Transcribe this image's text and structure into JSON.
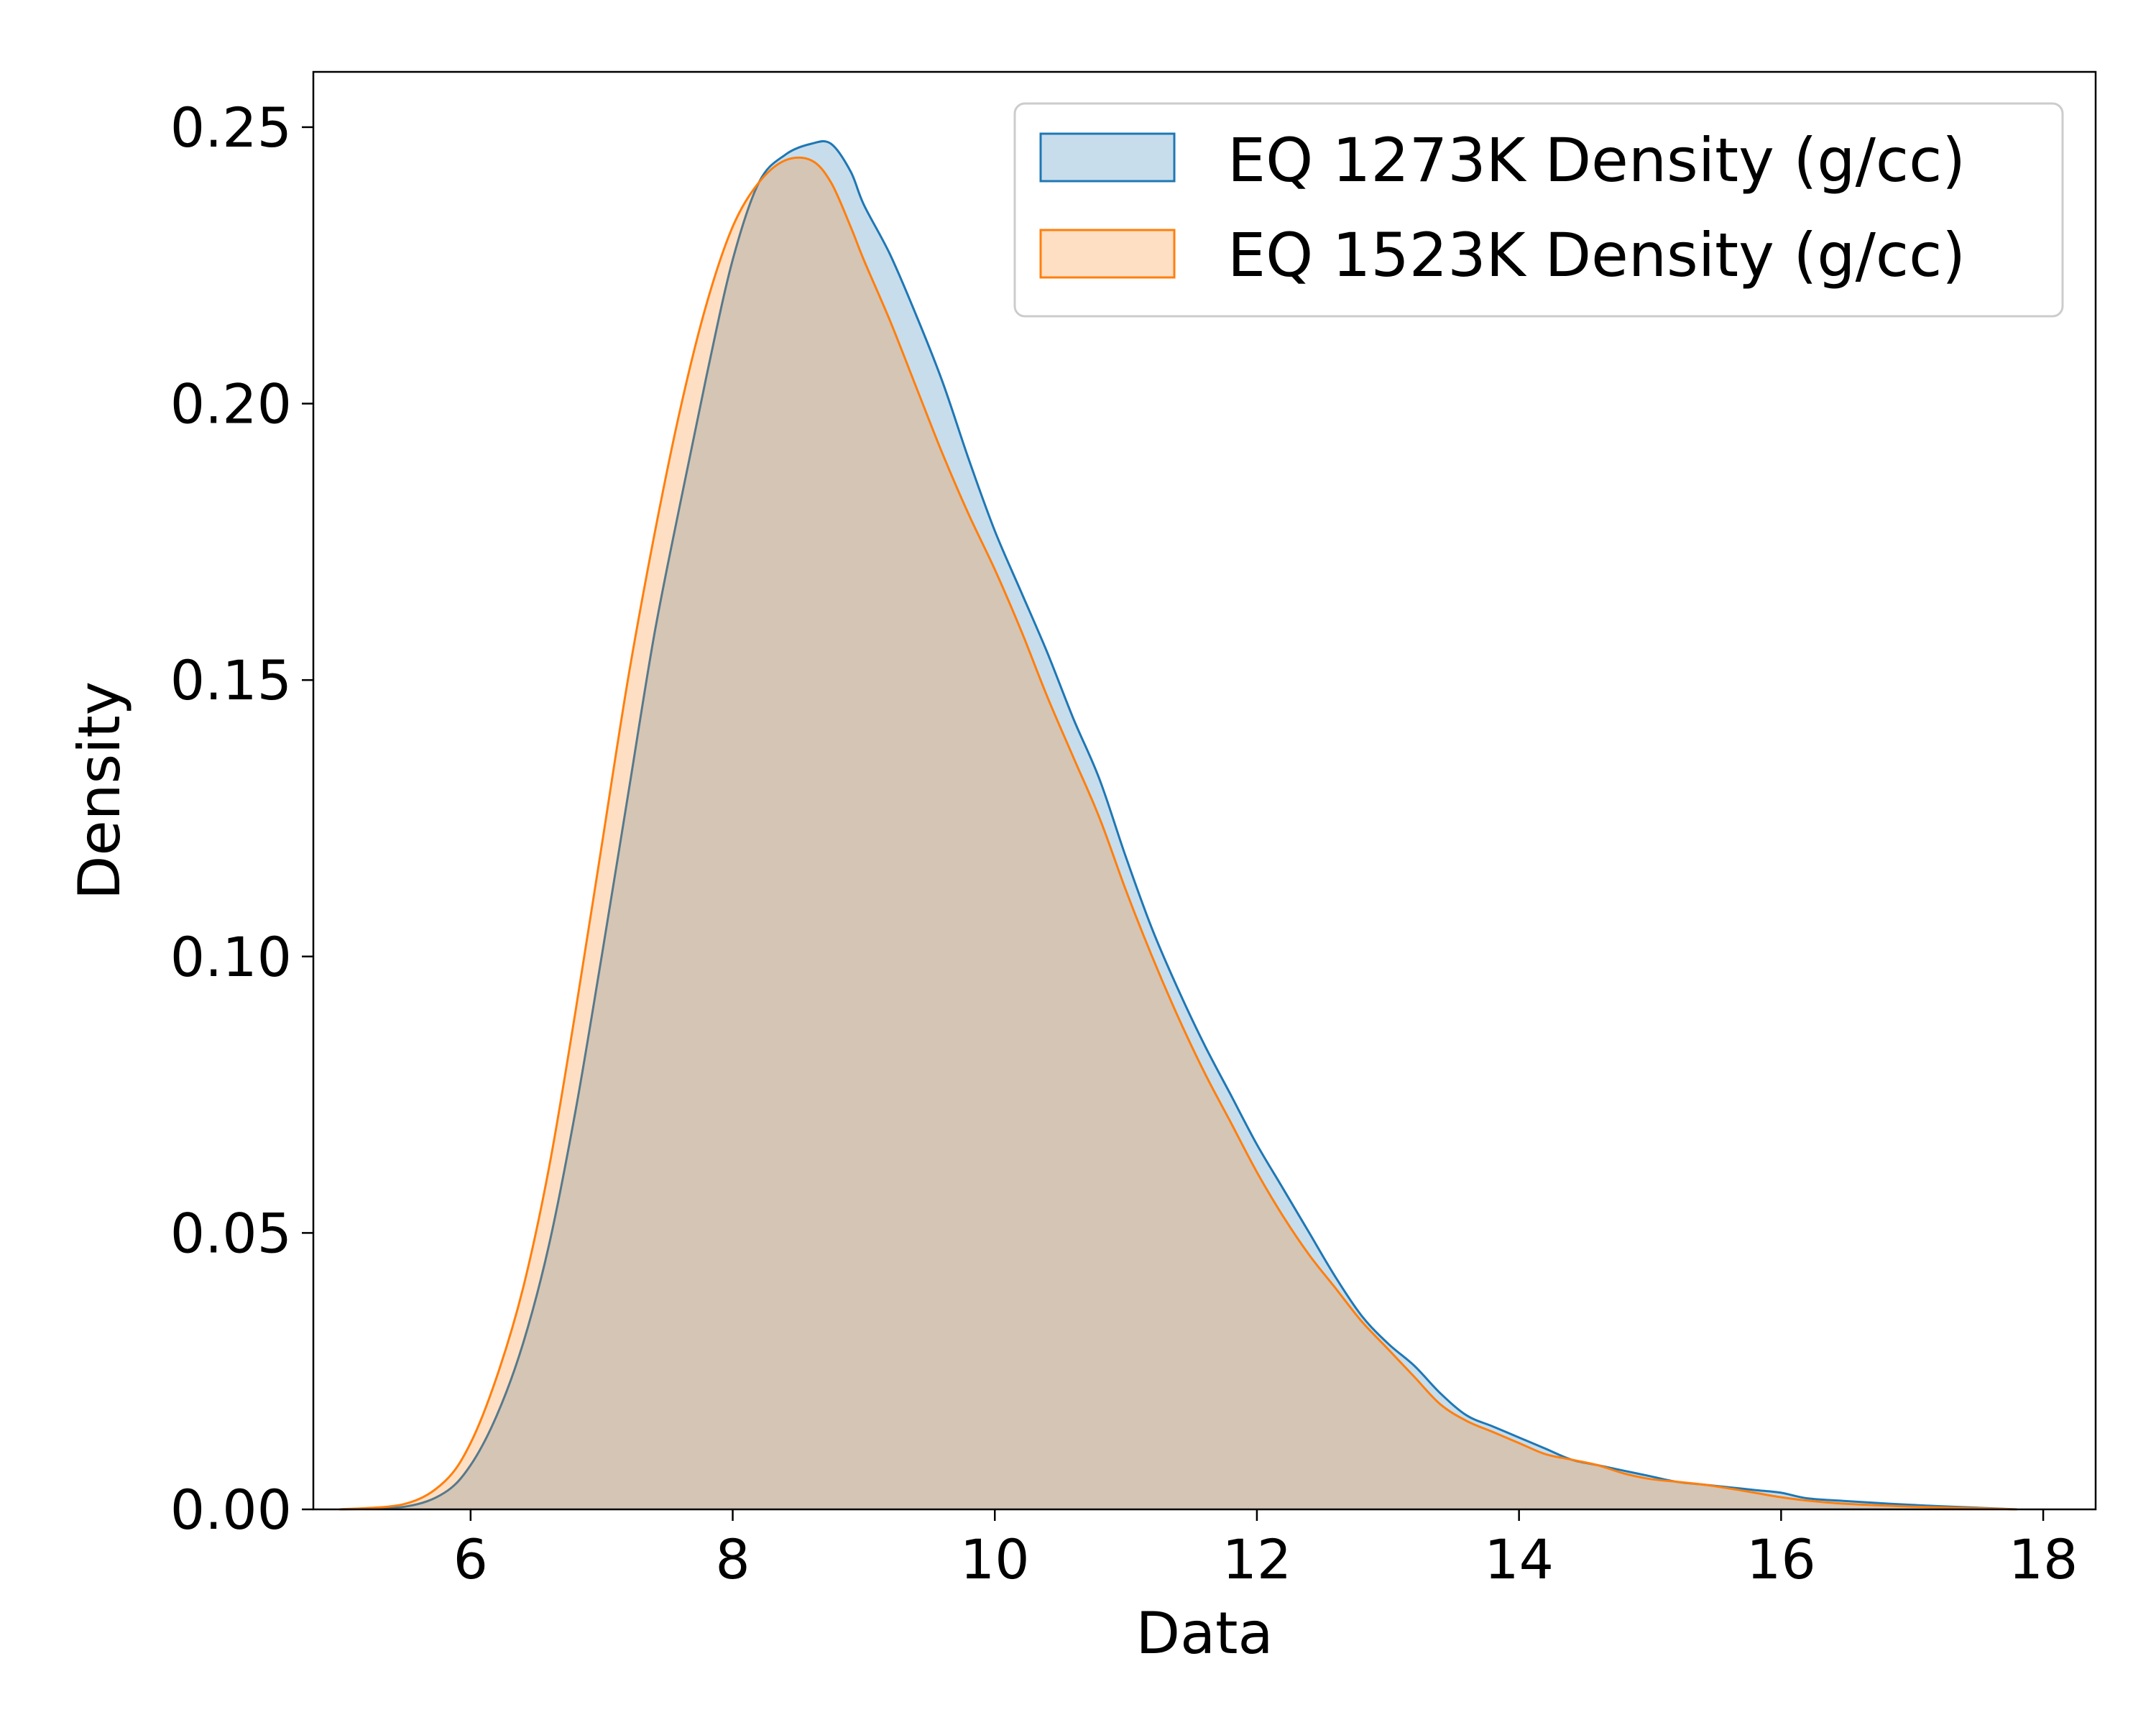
{
  "chart_data": {
    "type": "area",
    "title": "",
    "xlabel": "Data",
    "ylabel": "Density",
    "xlim": [
      4.8,
      18.4
    ],
    "ylim": [
      0,
      0.26
    ],
    "xticks": [
      6,
      8,
      10,
      12,
      14,
      16,
      18
    ],
    "xtick_labels": [
      "6",
      "8",
      "10",
      "12",
      "14",
      "16",
      "18"
    ],
    "yticks": [
      0,
      0.05,
      0.1,
      0.15,
      0.2,
      0.25
    ],
    "ytick_labels": [
      "0.00",
      "0.05",
      "0.10",
      "0.15",
      "0.20",
      "0.25"
    ],
    "grid": false,
    "legend_position": "top-right",
    "series": [
      {
        "name": "EQ 1273K Density (g/cc)",
        "color": "#1f77b4",
        "fill": "#c5d9eb",
        "x": [
          5.0,
          5.5,
          5.8,
          6.0,
          6.2,
          6.4,
          6.6,
          6.8,
          7.0,
          7.2,
          7.4,
          7.6,
          7.8,
          8.0,
          8.2,
          8.4,
          8.6,
          8.75,
          8.9,
          9.0,
          9.2,
          9.4,
          9.6,
          9.8,
          10.0,
          10.2,
          10.4,
          10.6,
          10.8,
          11.0,
          11.2,
          11.4,
          11.6,
          11.8,
          12.0,
          12.2,
          12.4,
          12.6,
          12.8,
          13.0,
          13.2,
          13.4,
          13.6,
          13.8,
          14.0,
          14.2,
          14.4,
          14.6,
          14.8,
          15.0,
          15.2,
          15.4,
          15.6,
          15.8,
          16.0,
          16.2,
          16.5,
          17.0,
          17.5,
          17.8
        ],
        "y": [
          0.0,
          0.0005,
          0.003,
          0.008,
          0.017,
          0.03,
          0.048,
          0.072,
          0.1,
          0.129,
          0.158,
          0.182,
          0.205,
          0.226,
          0.24,
          0.245,
          0.247,
          0.247,
          0.242,
          0.236,
          0.227,
          0.216,
          0.204,
          0.19,
          0.177,
          0.166,
          0.155,
          0.143,
          0.132,
          0.118,
          0.105,
          0.094,
          0.084,
          0.075,
          0.066,
          0.058,
          0.05,
          0.042,
          0.035,
          0.03,
          0.026,
          0.021,
          0.017,
          0.015,
          0.013,
          0.011,
          0.009,
          0.008,
          0.007,
          0.006,
          0.005,
          0.0045,
          0.004,
          0.0035,
          0.003,
          0.002,
          0.0015,
          0.0008,
          0.0003,
          0.0
        ]
      },
      {
        "name": "EQ 1523K Density (g/cc)",
        "color": "#ff7f0e",
        "fill": "#fdd9bc",
        "x": [
          5.0,
          5.5,
          5.8,
          6.0,
          6.2,
          6.4,
          6.6,
          6.8,
          7.0,
          7.2,
          7.4,
          7.6,
          7.8,
          8.0,
          8.2,
          8.4,
          8.6,
          8.75,
          8.9,
          9.0,
          9.2,
          9.4,
          9.6,
          9.8,
          10.0,
          10.2,
          10.4,
          10.6,
          10.8,
          11.0,
          11.2,
          11.4,
          11.6,
          11.8,
          12.0,
          12.2,
          12.4,
          12.6,
          12.8,
          13.0,
          13.2,
          13.4,
          13.6,
          13.8,
          14.0,
          14.2,
          14.4,
          14.6,
          14.8,
          15.0,
          15.2,
          15.4,
          15.6,
          15.8,
          16.0,
          16.2,
          16.5,
          17.0,
          17.5,
          17.8
        ],
        "y": [
          0.0,
          0.001,
          0.005,
          0.012,
          0.024,
          0.04,
          0.062,
          0.09,
          0.12,
          0.15,
          0.176,
          0.199,
          0.218,
          0.232,
          0.24,
          0.244,
          0.244,
          0.24,
          0.232,
          0.226,
          0.215,
          0.203,
          0.191,
          0.18,
          0.17,
          0.159,
          0.147,
          0.136,
          0.125,
          0.112,
          0.1,
          0.089,
          0.079,
          0.07,
          0.061,
          0.053,
          0.046,
          0.04,
          0.034,
          0.029,
          0.024,
          0.019,
          0.016,
          0.014,
          0.012,
          0.01,
          0.009,
          0.008,
          0.0065,
          0.0055,
          0.005,
          0.0045,
          0.0038,
          0.003,
          0.0022,
          0.0016,
          0.001,
          0.0005,
          0.0002,
          0.0
        ]
      }
    ]
  }
}
